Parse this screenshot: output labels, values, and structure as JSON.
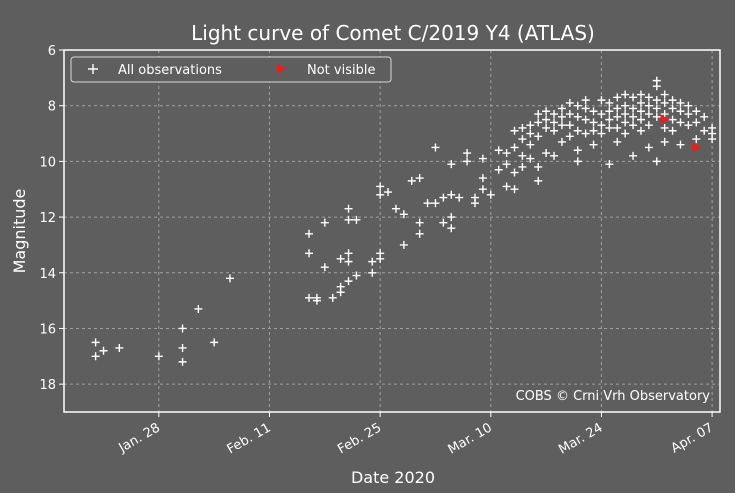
{
  "chart_data": {
    "type": "scatter",
    "title": "Light curve of Comet C/2019 Y4 (ATLAS)",
    "xlabel": "Date 2020",
    "ylabel": "Magnitude",
    "xlim": [
      "2020-01-16",
      "2020-04-08"
    ],
    "ylim": [
      19,
      6
    ],
    "y_inverted": true,
    "grid": true,
    "legend_placement": "top-left",
    "annotation": "COBS © Crni Vrh Observatory",
    "x_ticks": [
      {
        "date": "2020-01-28",
        "label": "Jan. 28"
      },
      {
        "date": "2020-02-11",
        "label": "Feb. 11"
      },
      {
        "date": "2020-02-25",
        "label": "Feb. 25"
      },
      {
        "date": "2020-03-10",
        "label": "Mar. 10"
      },
      {
        "date": "2020-03-24",
        "label": "Mar. 24"
      },
      {
        "date": "2020-04-07",
        "label": "Apr. 07"
      }
    ],
    "y_ticks": [
      {
        "value": 6,
        "label": "6"
      },
      {
        "value": 8,
        "label": "8"
      },
      {
        "value": 10,
        "label": "10"
      },
      {
        "value": 12,
        "label": "12"
      },
      {
        "value": 14,
        "label": "14"
      },
      {
        "value": 16,
        "label": "16"
      },
      {
        "value": 18,
        "label": "18"
      }
    ],
    "colors": {
      "background": "#5e5e5e",
      "observations": "#ffffff",
      "not_visible": "#ee1c1c",
      "grid": "#a0a0a0"
    },
    "series": [
      {
        "name": "All observations",
        "marker": "plus",
        "points": [
          [
            "2020-01-20",
            16.5
          ],
          [
            "2020-01-20",
            17.0
          ],
          [
            "2020-01-21",
            16.8
          ],
          [
            "2020-01-23",
            16.7
          ],
          [
            "2020-01-28",
            17.0
          ],
          [
            "2020-01-31",
            16.0
          ],
          [
            "2020-01-31",
            16.7
          ],
          [
            "2020-01-31",
            17.2
          ],
          [
            "2020-02-02",
            15.3
          ],
          [
            "2020-02-04",
            16.5
          ],
          [
            "2020-02-06",
            14.2
          ],
          [
            "2020-02-16",
            12.6
          ],
          [
            "2020-02-16",
            13.3
          ],
          [
            "2020-02-16",
            14.9
          ],
          [
            "2020-02-17",
            14.9
          ],
          [
            "2020-02-17",
            15.0
          ],
          [
            "2020-02-18",
            12.2
          ],
          [
            "2020-02-18",
            13.8
          ],
          [
            "2020-02-19",
            14.9
          ],
          [
            "2020-02-20",
            14.5
          ],
          [
            "2020-02-20",
            14.7
          ],
          [
            "2020-02-20",
            13.5
          ],
          [
            "2020-02-21",
            13.3
          ],
          [
            "2020-02-21",
            13.6
          ],
          [
            "2020-02-21",
            14.3
          ],
          [
            "2020-02-21",
            11.7
          ],
          [
            "2020-02-21",
            12.1
          ],
          [
            "2020-02-22",
            12.1
          ],
          [
            "2020-02-22",
            14.1
          ],
          [
            "2020-02-24",
            13.6
          ],
          [
            "2020-02-24",
            14.0
          ],
          [
            "2020-02-25",
            10.9
          ],
          [
            "2020-02-25",
            11.2
          ],
          [
            "2020-02-25",
            13.3
          ],
          [
            "2020-02-25",
            13.5
          ],
          [
            "2020-02-26",
            11.1
          ],
          [
            "2020-02-27",
            11.7
          ],
          [
            "2020-02-28",
            11.9
          ],
          [
            "2020-02-28",
            13.0
          ],
          [
            "2020-02-29",
            10.7
          ],
          [
            "2020-03-01",
            10.6
          ],
          [
            "2020-03-01",
            12.2
          ],
          [
            "2020-03-01",
            12.6
          ],
          [
            "2020-03-02",
            11.5
          ],
          [
            "2020-03-03",
            9.5
          ],
          [
            "2020-03-03",
            11.5
          ],
          [
            "2020-03-04",
            11.3
          ],
          [
            "2020-03-04",
            12.2
          ],
          [
            "2020-03-05",
            10.1
          ],
          [
            "2020-03-05",
            11.2
          ],
          [
            "2020-03-05",
            12.0
          ],
          [
            "2020-03-05",
            12.4
          ],
          [
            "2020-03-06",
            11.3
          ],
          [
            "2020-03-07",
            9.7
          ],
          [
            "2020-03-07",
            10.0
          ],
          [
            "2020-03-08",
            11.3
          ],
          [
            "2020-03-08",
            11.5
          ],
          [
            "2020-03-09",
            10.6
          ],
          [
            "2020-03-09",
            11.0
          ],
          [
            "2020-03-09",
            9.9
          ],
          [
            "2020-03-10",
            11.2
          ],
          [
            "2020-03-11",
            9.6
          ],
          [
            "2020-03-11",
            10.3
          ],
          [
            "2020-03-12",
            10.1
          ],
          [
            "2020-03-12",
            10.9
          ],
          [
            "2020-03-12",
            9.7
          ],
          [
            "2020-03-13",
            11.0
          ],
          [
            "2020-03-13",
            8.9
          ],
          [
            "2020-03-13",
            9.5
          ],
          [
            "2020-03-13",
            10.4
          ],
          [
            "2020-03-14",
            8.8
          ],
          [
            "2020-03-14",
            9.2
          ],
          [
            "2020-03-14",
            9.8
          ],
          [
            "2020-03-14",
            10.2
          ],
          [
            "2020-03-15",
            8.7
          ],
          [
            "2020-03-15",
            9.0
          ],
          [
            "2020-03-15",
            9.4
          ],
          [
            "2020-03-15",
            9.9
          ],
          [
            "2020-03-16",
            8.6
          ],
          [
            "2020-03-16",
            9.1
          ],
          [
            "2020-03-16",
            10.2
          ],
          [
            "2020-03-16",
            10.7
          ],
          [
            "2020-03-16",
            8.3
          ],
          [
            "2020-03-17",
            8.2
          ],
          [
            "2020-03-17",
            8.5
          ],
          [
            "2020-03-17",
            8.8
          ],
          [
            "2020-03-17",
            9.7
          ],
          [
            "2020-03-18",
            8.3
          ],
          [
            "2020-03-18",
            8.6
          ],
          [
            "2020-03-18",
            8.9
          ],
          [
            "2020-03-18",
            9.8
          ],
          [
            "2020-03-19",
            8.1
          ],
          [
            "2020-03-19",
            8.4
          ],
          [
            "2020-03-19",
            8.7
          ],
          [
            "2020-03-19",
            9.3
          ],
          [
            "2020-03-20",
            7.9
          ],
          [
            "2020-03-20",
            8.3
          ],
          [
            "2020-03-20",
            8.7
          ],
          [
            "2020-03-20",
            9.1
          ],
          [
            "2020-03-21",
            8.0
          ],
          [
            "2020-03-21",
            8.4
          ],
          [
            "2020-03-21",
            8.9
          ],
          [
            "2020-03-21",
            9.6
          ],
          [
            "2020-03-21",
            10.0
          ],
          [
            "2020-03-22",
            8.1
          ],
          [
            "2020-03-22",
            8.5
          ],
          [
            "2020-03-22",
            9.0
          ],
          [
            "2020-03-22",
            7.8
          ],
          [
            "2020-03-23",
            8.2
          ],
          [
            "2020-03-23",
            8.6
          ],
          [
            "2020-03-23",
            8.9
          ],
          [
            "2020-03-23",
            9.4
          ],
          [
            "2020-03-24",
            7.8
          ],
          [
            "2020-03-24",
            8.3
          ],
          [
            "2020-03-24",
            8.7
          ],
          [
            "2020-03-24",
            9.0
          ],
          [
            "2020-03-25",
            7.9
          ],
          [
            "2020-03-25",
            8.2
          ],
          [
            "2020-03-25",
            8.5
          ],
          [
            "2020-03-25",
            8.8
          ],
          [
            "2020-03-25",
            10.1
          ],
          [
            "2020-03-26",
            7.7
          ],
          [
            "2020-03-26",
            8.1
          ],
          [
            "2020-03-26",
            8.4
          ],
          [
            "2020-03-26",
            8.8
          ],
          [
            "2020-03-26",
            9.3
          ],
          [
            "2020-03-27",
            7.6
          ],
          [
            "2020-03-27",
            8.0
          ],
          [
            "2020-03-27",
            8.3
          ],
          [
            "2020-03-27",
            8.6
          ],
          [
            "2020-03-27",
            9.0
          ],
          [
            "2020-03-28",
            7.7
          ],
          [
            "2020-03-28",
            8.1
          ],
          [
            "2020-03-28",
            8.4
          ],
          [
            "2020-03-28",
            8.7
          ],
          [
            "2020-03-28",
            9.8
          ],
          [
            "2020-03-29",
            7.6
          ],
          [
            "2020-03-29",
            7.9
          ],
          [
            "2020-03-29",
            8.2
          ],
          [
            "2020-03-29",
            8.5
          ],
          [
            "2020-03-29",
            8.9
          ],
          [
            "2020-03-30",
            7.7
          ],
          [
            "2020-03-30",
            8.0
          ],
          [
            "2020-03-30",
            8.3
          ],
          [
            "2020-03-30",
            8.7
          ],
          [
            "2020-03-30",
            9.5
          ],
          [
            "2020-03-31",
            7.1
          ],
          [
            "2020-03-31",
            7.3
          ],
          [
            "2020-03-31",
            7.8
          ],
          [
            "2020-03-31",
            8.1
          ],
          [
            "2020-03-31",
            8.4
          ],
          [
            "2020-03-31",
            10.0
          ],
          [
            "2020-04-01",
            7.6
          ],
          [
            "2020-04-01",
            7.9
          ],
          [
            "2020-04-01",
            8.3
          ],
          [
            "2020-04-01",
            8.8
          ],
          [
            "2020-04-01",
            9.3
          ],
          [
            "2020-04-02",
            7.8
          ],
          [
            "2020-04-02",
            8.1
          ],
          [
            "2020-04-02",
            8.5
          ],
          [
            "2020-04-02",
            8.9
          ],
          [
            "2020-04-03",
            7.9
          ],
          [
            "2020-04-03",
            8.2
          ],
          [
            "2020-04-03",
            8.6
          ],
          [
            "2020-04-03",
            9.4
          ],
          [
            "2020-04-04",
            8.0
          ],
          [
            "2020-04-04",
            8.3
          ],
          [
            "2020-04-04",
            8.7
          ],
          [
            "2020-04-05",
            8.2
          ],
          [
            "2020-04-05",
            8.6
          ],
          [
            "2020-04-05",
            9.2
          ],
          [
            "2020-04-06",
            8.4
          ],
          [
            "2020-04-06",
            8.9
          ],
          [
            "2020-04-07",
            8.8
          ],
          [
            "2020-04-07",
            9.0
          ],
          [
            "2020-04-07",
            9.2
          ]
        ]
      },
      {
        "name": "Not visible",
        "marker": "triangle-right",
        "points": [
          [
            "2020-04-01",
            8.5
          ],
          [
            "2020-04-05",
            9.5
          ]
        ]
      }
    ]
  }
}
